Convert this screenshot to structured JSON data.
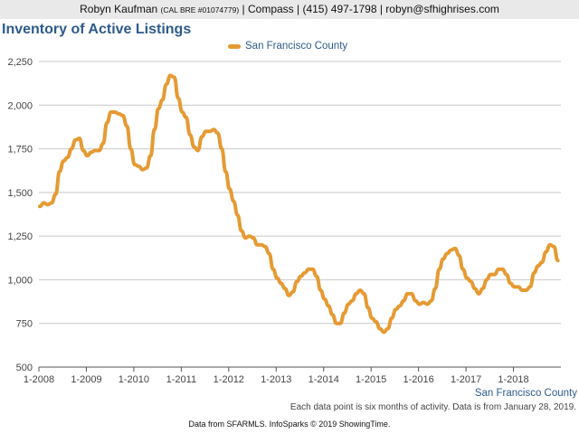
{
  "header": {
    "name": "Robyn Kaufman",
    "license": "(CAL BRE #01074779)",
    "rest": "| Compass | (415) 497-1798 | robyn@sfhighrises.com"
  },
  "colors": {
    "line": "#e59a33",
    "title": "#2e5b8c",
    "grid": "#c8c8c8"
  },
  "chart_data": {
    "type": "line",
    "title": "Inventory of Active Listings",
    "legend_position": "top-center",
    "grid": true,
    "x_axis_label": "San Francisco County",
    "ylim": [
      500,
      2250
    ],
    "y_ticks": [
      "2,250",
      "2,000",
      "1,750",
      "1,500",
      "1,250",
      "1,000",
      "750",
      "500"
    ],
    "y_tick_values": [
      2250,
      2000,
      1750,
      1500,
      1250,
      1000,
      750,
      500
    ],
    "x_ticks": [
      "1-2008",
      "1-2009",
      "1-2010",
      "1-2011",
      "1-2012",
      "1-2013",
      "1-2014",
      "1-2015",
      "1-2016",
      "1-2017",
      "1-2018"
    ],
    "x_start": "1-2008",
    "x_end": "12-2018",
    "series": [
      {
        "name": "San Francisco County",
        "values": [
          1420,
          1440,
          1430,
          1440,
          1490,
          1620,
          1680,
          1700,
          1750,
          1800,
          1810,
          1740,
          1710,
          1730,
          1740,
          1740,
          1780,
          1900,
          1960,
          1960,
          1950,
          1940,
          1880,
          1750,
          1660,
          1650,
          1630,
          1640,
          1710,
          1860,
          1980,
          2030,
          2120,
          2170,
          2160,
          2040,
          1960,
          1930,
          1830,
          1760,
          1740,
          1820,
          1850,
          1850,
          1860,
          1840,
          1750,
          1620,
          1520,
          1450,
          1370,
          1280,
          1240,
          1250,
          1240,
          1200,
          1200,
          1190,
          1150,
          1060,
          1010,
          980,
          950,
          910,
          930,
          990,
          1020,
          1040,
          1060,
          1060,
          1020,
          940,
          890,
          850,
          800,
          750,
          750,
          810,
          860,
          880,
          920,
          940,
          920,
          840,
          780,
          760,
          720,
          700,
          720,
          780,
          830,
          850,
          880,
          920,
          920,
          880,
          860,
          870,
          860,
          880,
          950,
          1060,
          1120,
          1150,
          1170,
          1180,
          1140,
          1060,
          1010,
          990,
          950,
          920,
          950,
          1000,
          1030,
          1030,
          1060,
          1060,
          1030,
          980,
          960,
          960,
          940,
          940,
          960,
          1040,
          1080,
          1100,
          1160,
          1200,
          1190,
          1110
        ]
      }
    ]
  },
  "note": "Each data point is six months of activity. Data is from January 28, 2019.",
  "footer": "Data from SFARMLS. InfoSparks © 2019 ShowingTime."
}
